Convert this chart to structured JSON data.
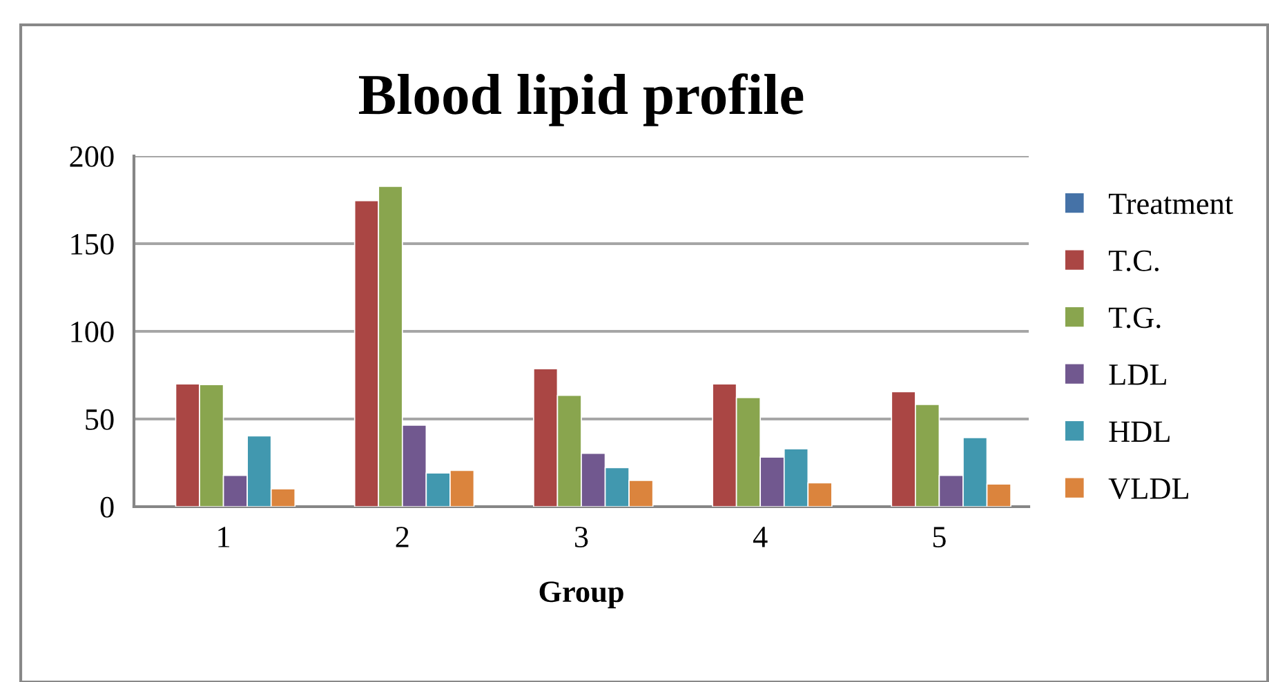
{
  "chart_data": {
    "type": "bar",
    "title": "Blood lipid profile",
    "xlabel": "Group",
    "categories": [
      "1",
      "2",
      "3",
      "4",
      "5"
    ],
    "series": [
      {
        "name": "Treatment",
        "color": "#4572a7",
        "values": [
          null,
          null,
          null,
          null,
          null
        ]
      },
      {
        "name": "T.C.",
        "color": "#aa4644",
        "values": [
          70,
          174.5,
          78.7,
          70,
          65.6
        ]
      },
      {
        "name": "T.G.",
        "color": "#89a54e",
        "values": [
          69.6,
          182.7,
          63.5,
          62.2,
          58.3
        ]
      },
      {
        "name": "LDL",
        "color": "#71588f",
        "values": [
          17.8,
          46.5,
          30.4,
          28.3,
          17.8
        ]
      },
      {
        "name": "HDL",
        "color": "#4198af",
        "values": [
          40.4,
          19.2,
          22.3,
          33,
          39.4
        ]
      },
      {
        "name": "VLDL",
        "color": "#db843d",
        "values": [
          10.2,
          20.7,
          15,
          13.6,
          12.9
        ]
      }
    ],
    "ylim": [
      0,
      200
    ],
    "yticks": [
      0,
      50,
      100,
      150,
      200
    ],
    "grid": "y",
    "legend": "right"
  }
}
